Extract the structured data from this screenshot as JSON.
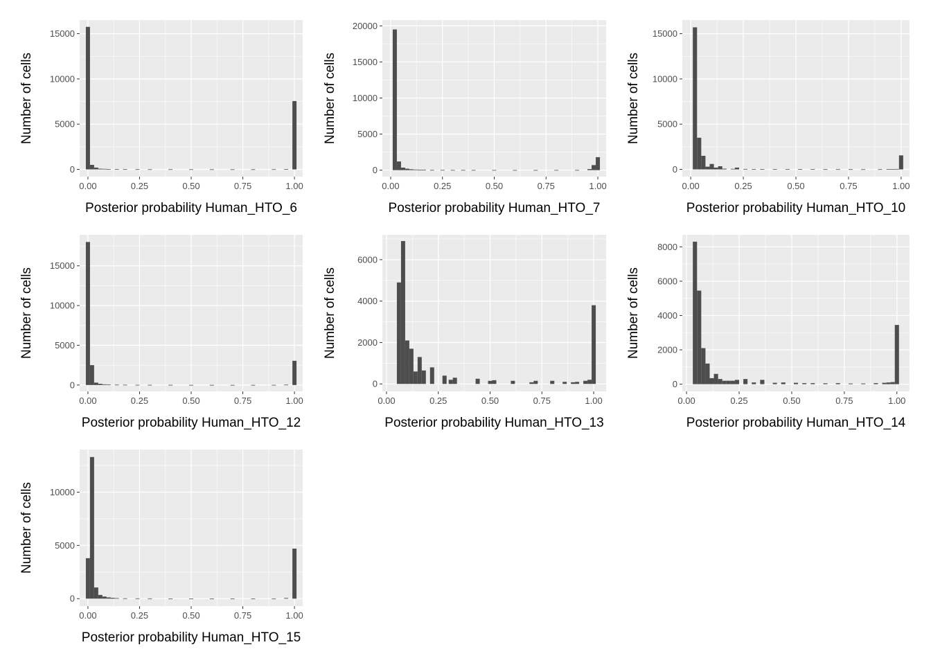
{
  "chart_data": [
    {
      "type": "bar",
      "xlabel": "Posterior probability Human_HTO_6",
      "ylabel": "Number of cells",
      "xlim": [
        -0.04,
        1.04
      ],
      "ylim": [
        -800,
        16500
      ],
      "xticks": [
        0,
        0.25,
        0.5,
        0.75,
        1
      ],
      "xtick_labels": [
        "0.00",
        "0.25",
        "0.50",
        "0.75",
        "1.00"
      ],
      "yticks": [
        0,
        5000,
        10000,
        15000
      ],
      "ytick_labels": [
        "0",
        "5000",
        "10000",
        "15000"
      ],
      "bin_width": 0.02,
      "bins": [
        [
          0.0,
          15750
        ],
        [
          0.02,
          500
        ],
        [
          0.04,
          200
        ],
        [
          0.06,
          80
        ],
        [
          0.08,
          60
        ],
        [
          0.1,
          40
        ],
        [
          0.14,
          30
        ],
        [
          0.18,
          25
        ],
        [
          0.24,
          20
        ],
        [
          0.3,
          15
        ],
        [
          0.4,
          15
        ],
        [
          0.5,
          10
        ],
        [
          0.6,
          10
        ],
        [
          0.7,
          10
        ],
        [
          0.8,
          10
        ],
        [
          0.9,
          15
        ],
        [
          0.96,
          40
        ],
        [
          1.0,
          7550
        ]
      ],
      "grid": true
    },
    {
      "type": "bar",
      "xlabel": "Posterior probability Human_HTO_7",
      "ylabel": "Number of cells",
      "xlim": [
        -0.04,
        1.04
      ],
      "ylim": [
        -900,
        20800
      ],
      "xticks": [
        0,
        0.25,
        0.5,
        0.75,
        1
      ],
      "xtick_labels": [
        "0.00",
        "0.25",
        "0.50",
        "0.75",
        "1.00"
      ],
      "yticks": [
        0,
        5000,
        10000,
        15000,
        20000
      ],
      "ytick_labels": [
        "0",
        "5000",
        "10000",
        "15000",
        "20000"
      ],
      "bin_width": 0.02,
      "bins": [
        [
          0.02,
          19500
        ],
        [
          0.04,
          1200
        ],
        [
          0.06,
          350
        ],
        [
          0.08,
          200
        ],
        [
          0.1,
          120
        ],
        [
          0.12,
          80
        ],
        [
          0.14,
          60
        ],
        [
          0.16,
          40
        ],
        [
          0.2,
          30
        ],
        [
          0.25,
          25
        ],
        [
          0.3,
          20
        ],
        [
          0.35,
          20
        ],
        [
          0.4,
          15
        ],
        [
          0.5,
          15
        ],
        [
          0.6,
          10
        ],
        [
          0.7,
          10
        ],
        [
          0.8,
          15
        ],
        [
          0.9,
          20
        ],
        [
          0.96,
          150
        ],
        [
          0.98,
          700
        ],
        [
          1.0,
          1800
        ]
      ],
      "grid": true
    },
    {
      "type": "bar",
      "xlabel": "Posterior probability Human_HTO_10",
      "ylabel": "Number of cells",
      "xlim": [
        -0.04,
        1.04
      ],
      "ylim": [
        -800,
        16500
      ],
      "xticks": [
        0,
        0.25,
        0.5,
        0.75,
        1
      ],
      "xtick_labels": [
        "0.00",
        "0.25",
        "0.50",
        "0.75",
        "1.00"
      ],
      "yticks": [
        0,
        5000,
        10000,
        15000
      ],
      "ytick_labels": [
        "0",
        "5000",
        "10000",
        "15000"
      ],
      "bin_width": 0.02,
      "bins": [
        [
          0.02,
          15700
        ],
        [
          0.04,
          3500
        ],
        [
          0.06,
          1500
        ],
        [
          0.08,
          300
        ],
        [
          0.1,
          600
        ],
        [
          0.12,
          200
        ],
        [
          0.14,
          350
        ],
        [
          0.16,
          80
        ],
        [
          0.2,
          60
        ],
        [
          0.22,
          200
        ],
        [
          0.26,
          50
        ],
        [
          0.3,
          40
        ],
        [
          0.34,
          40
        ],
        [
          0.4,
          40
        ],
        [
          0.46,
          30
        ],
        [
          0.52,
          30
        ],
        [
          0.58,
          30
        ],
        [
          0.64,
          20
        ],
        [
          0.7,
          20
        ],
        [
          0.76,
          20
        ],
        [
          0.82,
          15
        ],
        [
          0.9,
          20
        ],
        [
          0.94,
          30
        ],
        [
          0.96,
          40
        ],
        [
          0.98,
          50
        ],
        [
          1.0,
          1550
        ]
      ],
      "grid": true
    },
    {
      "type": "bar",
      "xlabel": "Posterior probability Human_HTO_12",
      "ylabel": "Number of cells",
      "xlim": [
        -0.04,
        1.04
      ],
      "ylim": [
        -800,
        18900
      ],
      "xticks": [
        0,
        0.25,
        0.5,
        0.75,
        1
      ],
      "xtick_labels": [
        "0.00",
        "0.25",
        "0.50",
        "0.75",
        "1.00"
      ],
      "yticks": [
        0,
        5000,
        10000,
        15000
      ],
      "ytick_labels": [
        "0",
        "5000",
        "10000",
        "15000"
      ],
      "bin_width": 0.02,
      "bins": [
        [
          0.0,
          18000
        ],
        [
          0.02,
          2500
        ],
        [
          0.04,
          300
        ],
        [
          0.06,
          150
        ],
        [
          0.08,
          80
        ],
        [
          0.1,
          60
        ],
        [
          0.14,
          40
        ],
        [
          0.18,
          30
        ],
        [
          0.24,
          20
        ],
        [
          0.3,
          15
        ],
        [
          0.4,
          15
        ],
        [
          0.5,
          10
        ],
        [
          0.6,
          10
        ],
        [
          0.7,
          10
        ],
        [
          0.8,
          10
        ],
        [
          0.9,
          15
        ],
        [
          0.96,
          40
        ],
        [
          1.0,
          3050
        ]
      ],
      "grid": true
    },
    {
      "type": "bar",
      "xlabel": "Posterior probability Human_HTO_13",
      "ylabel": "Number of cells",
      "xlim": [
        -0.02,
        1.06
      ],
      "ylim": [
        -360,
        7200
      ],
      "xticks": [
        0,
        0.25,
        0.5,
        0.75,
        1
      ],
      "xtick_labels": [
        "0.00",
        "0.25",
        "0.50",
        "0.75",
        "1.00"
      ],
      "yticks": [
        0,
        2000,
        4000,
        6000
      ],
      "ytick_labels": [
        "0",
        "2000",
        "4000",
        "6000"
      ],
      "bin_width": 0.02,
      "bins": [
        [
          0.06,
          4900
        ],
        [
          0.08,
          6900
        ],
        [
          0.1,
          2100
        ],
        [
          0.12,
          1700
        ],
        [
          0.14,
          600
        ],
        [
          0.16,
          1300
        ],
        [
          0.18,
          650
        ],
        [
          0.22,
          800
        ],
        [
          0.28,
          400
        ],
        [
          0.31,
          200
        ],
        [
          0.33,
          300
        ],
        [
          0.44,
          250
        ],
        [
          0.5,
          150
        ],
        [
          0.52,
          180
        ],
        [
          0.61,
          150
        ],
        [
          0.7,
          80
        ],
        [
          0.72,
          150
        ],
        [
          0.8,
          150
        ],
        [
          0.86,
          100
        ],
        [
          0.9,
          80
        ],
        [
          0.92,
          100
        ],
        [
          0.96,
          150
        ],
        [
          0.98,
          200
        ],
        [
          1.0,
          3800
        ]
      ],
      "grid": true
    },
    {
      "type": "bar",
      "xlabel": "Posterior probability Human_HTO_14",
      "ylabel": "Number of cells",
      "xlim": [
        -0.02,
        1.06
      ],
      "ylim": [
        -420,
        8700
      ],
      "xticks": [
        0,
        0.25,
        0.5,
        0.75,
        1
      ],
      "xtick_labels": [
        "0.00",
        "0.25",
        "0.50",
        "0.75",
        "1.00"
      ],
      "yticks": [
        0,
        2000,
        4000,
        6000,
        8000
      ],
      "ytick_labels": [
        "0",
        "2000",
        "4000",
        "6000",
        "8000"
      ],
      "bin_width": 0.02,
      "bins": [
        [
          0.04,
          8300
        ],
        [
          0.06,
          5450
        ],
        [
          0.08,
          2100
        ],
        [
          0.1,
          1200
        ],
        [
          0.12,
          350
        ],
        [
          0.14,
          600
        ],
        [
          0.16,
          300
        ],
        [
          0.18,
          200
        ],
        [
          0.2,
          200
        ],
        [
          0.22,
          200
        ],
        [
          0.24,
          250
        ],
        [
          0.28,
          300
        ],
        [
          0.32,
          100
        ],
        [
          0.36,
          250
        ],
        [
          0.42,
          80
        ],
        [
          0.46,
          100
        ],
        [
          0.52,
          80
        ],
        [
          0.56,
          60
        ],
        [
          0.6,
          60
        ],
        [
          0.66,
          50
        ],
        [
          0.72,
          60
        ],
        [
          0.78,
          40
        ],
        [
          0.84,
          40
        ],
        [
          0.9,
          60
        ],
        [
          0.94,
          80
        ],
        [
          0.96,
          100
        ],
        [
          0.98,
          120
        ],
        [
          1.0,
          3450
        ]
      ],
      "grid": true
    },
    {
      "type": "bar",
      "xlabel": "Posterior probability Human_HTO_15",
      "ylabel": "Number of cells",
      "xlim": [
        -0.04,
        1.04
      ],
      "ylim": [
        -700,
        14000
      ],
      "xticks": [
        0,
        0.25,
        0.5,
        0.75,
        1
      ],
      "xtick_labels": [
        "0.00",
        "0.25",
        "0.50",
        "0.75",
        "1.00"
      ],
      "yticks": [
        0,
        5000,
        10000
      ],
      "ytick_labels": [
        "0",
        "5000",
        "10000"
      ],
      "bin_width": 0.02,
      "bins": [
        [
          0.0,
          3800
        ],
        [
          0.02,
          13300
        ],
        [
          0.04,
          1050
        ],
        [
          0.06,
          350
        ],
        [
          0.08,
          200
        ],
        [
          0.1,
          120
        ],
        [
          0.12,
          80
        ],
        [
          0.14,
          50
        ],
        [
          0.18,
          30
        ],
        [
          0.24,
          25
        ],
        [
          0.3,
          20
        ],
        [
          0.4,
          15
        ],
        [
          0.5,
          15
        ],
        [
          0.6,
          10
        ],
        [
          0.7,
          10
        ],
        [
          0.8,
          15
        ],
        [
          0.9,
          20
        ],
        [
          0.96,
          60
        ],
        [
          1.0,
          4700
        ]
      ],
      "grid": true
    }
  ]
}
